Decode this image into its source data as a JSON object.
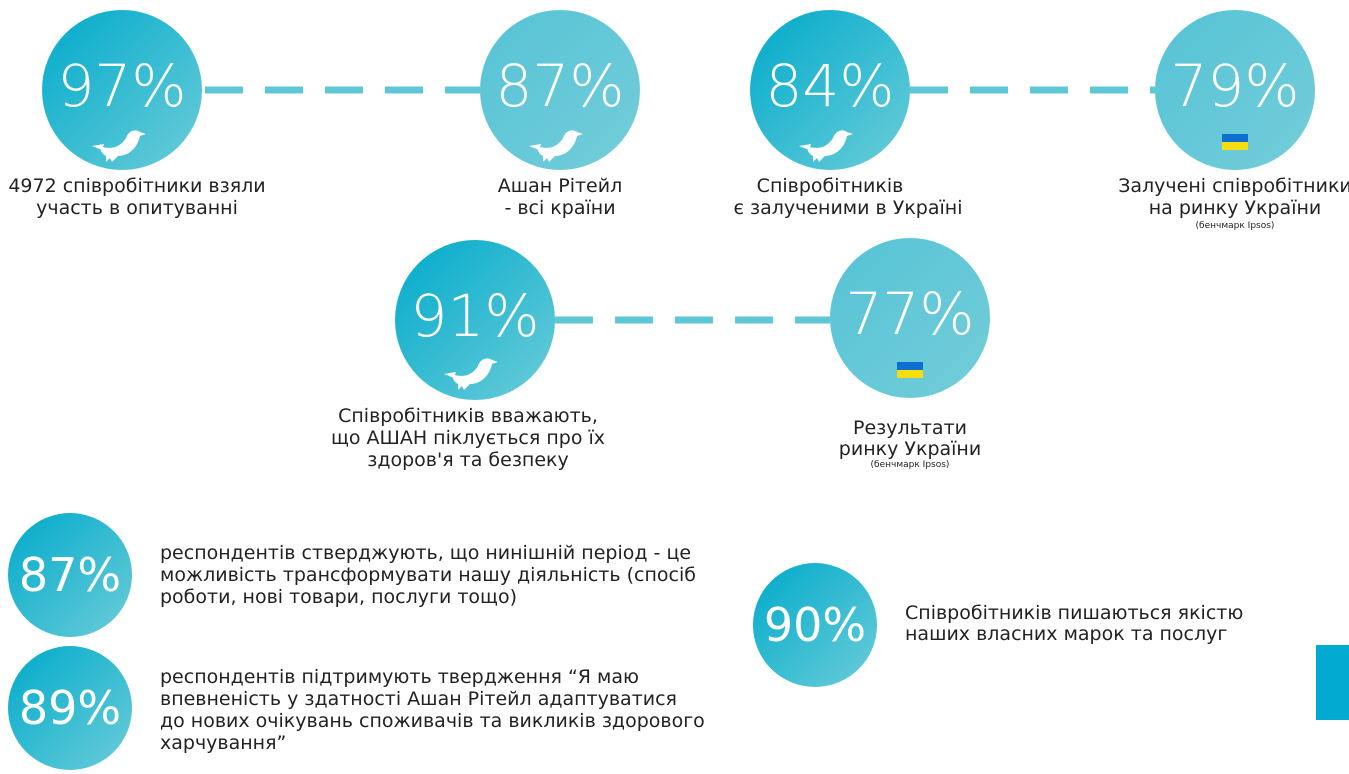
{
  "top_row": [
    {
      "value": "97%",
      "label": [
        "4972 співробітники взяли",
        "участь в опитуванні"
      ]
    },
    {
      "value": "87%",
      "label": [
        "Ашан Рітейл",
        "- всі країни"
      ]
    },
    {
      "value": "84%",
      "label": [
        "Співробітників",
        "є залученими в Україні"
      ]
    },
    {
      "value": "79%",
      "label": [
        "Залучені співробітники",
        "на ринку України"
      ],
      "note": "(бенчмарк Ipsos)"
    }
  ],
  "middle_row": [
    {
      "value": "91%",
      "label": [
        "Співробітників вважають,",
        "що АШАН піклується про їх",
        "здоров'я та безпеку"
      ]
    },
    {
      "value": "77%",
      "label": [
        "Результати",
        "ринку України"
      ],
      "note": "(бенчмарк Ipsos)"
    }
  ],
  "bottom": [
    {
      "value": "87%",
      "text": [
        "респондентів стверджують, що нинішній період - це",
        "можливість трансформувати нашу діяльність (спосіб",
        "роботи, нові товари, послуги тощо)"
      ]
    },
    {
      "value": "89%",
      "text": [
        "респондентів підтримують твердження “Я маю",
        "впевненість у здатності Ашан Рітейл адаптуватися",
        "до нових очікувань споживачів та викликів здорового",
        "харчування”"
      ]
    },
    {
      "value": "90%",
      "text": [
        "Співробітників пишаються якістю",
        "наших власних марок та послуг"
      ]
    }
  ]
}
